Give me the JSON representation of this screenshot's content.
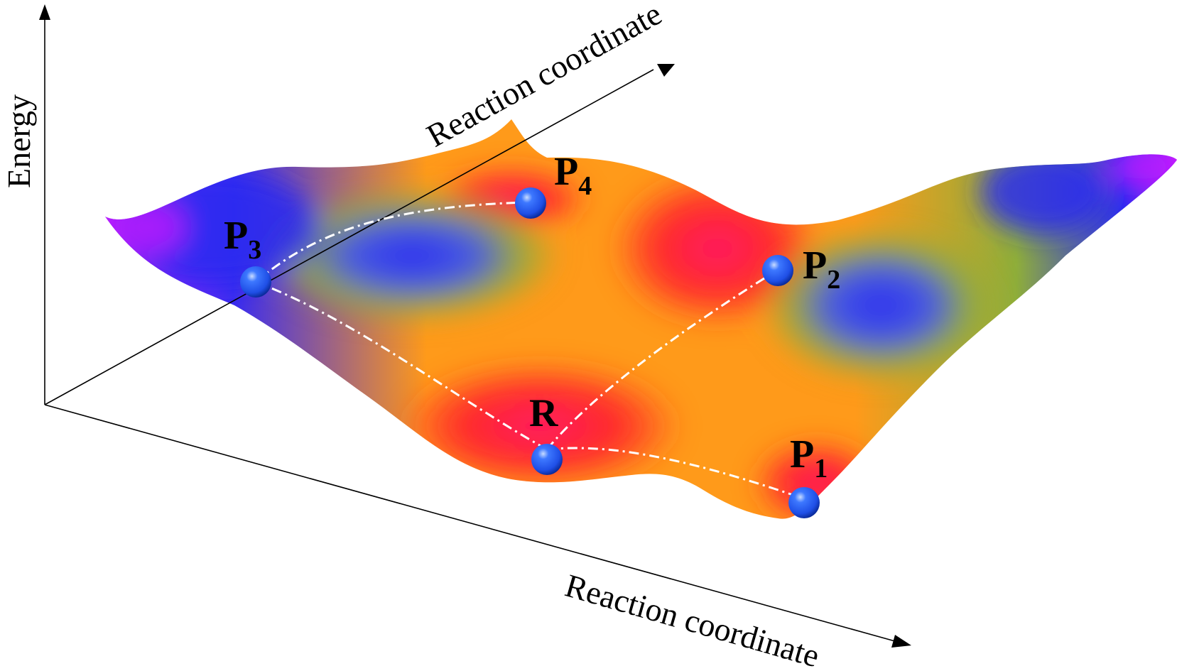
{
  "axes": {
    "vertical_label": "Energy",
    "depth_label": "Reaction coordinate",
    "horizontal_label": "Reaction coordinate"
  },
  "states": {
    "R": {
      "main": "R",
      "sub": ""
    },
    "P1": {
      "main": "P",
      "sub": "1"
    },
    "P2": {
      "main": "P",
      "sub": "2"
    },
    "P3": {
      "main": "P",
      "sub": "3"
    },
    "P4": {
      "main": "P",
      "sub": "4"
    }
  },
  "colors": {
    "surface_low": "#ff1a66",
    "surface_mid": "#ff9a1a",
    "surface_green": "#8fae3a",
    "surface_high": "#2a2cf0",
    "surface_top": "#c21cff",
    "ball": "#1f4fe6",
    "path": "#ffffff"
  }
}
